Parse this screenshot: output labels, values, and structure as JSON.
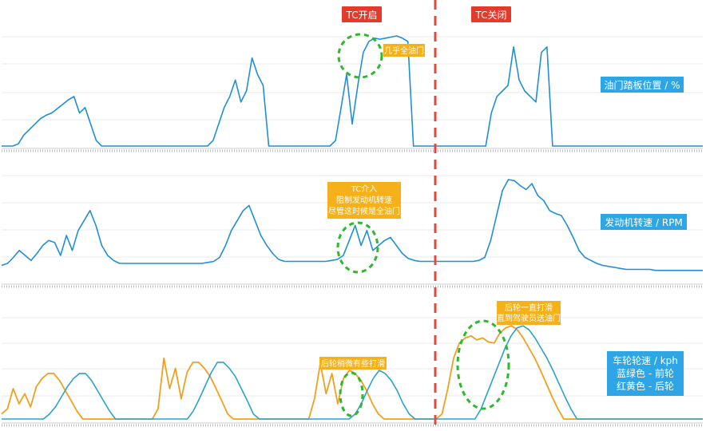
{
  "colors": {
    "engine_line": "#1f8fd6",
    "front_wheel": "#2aa3c9",
    "rear_wheel": "#f0a020",
    "rear_wheel_alt": "#e84a1a",
    "tc_marker": "#e04a3a",
    "tc_label_bg": "#e23b2b",
    "note_bg": "#f5b01a",
    "panel_label_bg": "#2ea6e6",
    "circle": "#2db82d",
    "grid": "#e6eaee"
  },
  "markers": {
    "tc_on": "TC开启",
    "tc_off": "TC关闭"
  },
  "chart_data": [
    {
      "type": "line",
      "title": "油门踏板位置 / %",
      "series": [
        {
          "name": "油门踏板位置",
          "values": [
            0,
            0,
            0,
            0.02,
            0.1,
            0.15,
            0.2,
            0.25,
            0.28,
            0.3,
            0.34,
            0.38,
            0.42,
            0.45,
            0.3,
            0.35,
            0.2,
            0.05,
            0,
            0,
            0,
            0,
            0,
            0,
            0,
            0,
            0,
            0,
            0,
            0,
            0,
            0,
            0,
            0,
            0,
            0,
            0,
            0,
            0.05,
            0.2,
            0.35,
            0.45,
            0.6,
            0.4,
            0.5,
            0.8,
            0.65,
            0.55,
            0,
            0,
            0,
            0,
            0,
            0,
            0,
            0,
            0,
            0,
            0,
            0,
            0.05,
            0.35,
            0.65,
            0.2,
            0.55,
            0.85,
            0.95,
            0.98,
            0.97,
            0.98,
            0.99,
            1.0,
            0.98,
            0.95,
            0,
            0,
            0,
            0,
            0,
            0,
            0,
            0,
            0,
            0,
            0,
            0,
            0,
            0,
            0.3,
            0.45,
            0.5,
            0.55,
            0.9,
            0.6,
            0.5,
            0.45,
            0.4,
            0.85,
            0.9,
            0,
            0,
            0,
            0,
            0,
            0,
            0,
            0,
            0,
            0,
            0,
            0,
            0,
            0,
            0,
            0,
            0,
            0,
            0,
            0,
            0,
            0,
            0,
            0,
            0,
            0,
            0,
            0
          ]
        }
      ],
      "annotations": [
        "几乎全油门"
      ]
    },
    {
      "type": "line",
      "title": "发动机转速 / RPM",
      "series": [
        {
          "name": "发动机转速",
          "values": [
            0.1,
            0.12,
            0.18,
            0.25,
            0.2,
            0.15,
            0.22,
            0.3,
            0.35,
            0.33,
            0.2,
            0.4,
            0.25,
            0.45,
            0.55,
            0.65,
            0.5,
            0.3,
            0.2,
            0.15,
            0.12,
            0.12,
            0.12,
            0.12,
            0.12,
            0.12,
            0.12,
            0.12,
            0.12,
            0.12,
            0.12,
            0.12,
            0.12,
            0.12,
            0.12,
            0.13,
            0.14,
            0.18,
            0.3,
            0.45,
            0.55,
            0.65,
            0.7,
            0.55,
            0.4,
            0.3,
            0.22,
            0.16,
            0.14,
            0.14,
            0.14,
            0.14,
            0.14,
            0.14,
            0.14,
            0.14,
            0.15,
            0.16,
            0.2,
            0.35,
            0.5,
            0.3,
            0.45,
            0.25,
            0.3,
            0.35,
            0.38,
            0.3,
            0.22,
            0.17,
            0.15,
            0.14,
            0.14,
            0.14,
            0.14,
            0.14,
            0.14,
            0.14,
            0.14,
            0.14,
            0.14,
            0.15,
            0.18,
            0.35,
            0.6,
            0.85,
            0.96,
            0.95,
            0.9,
            0.86,
            0.92,
            0.8,
            0.75,
            0.65,
            0.62,
            0.6,
            0.5,
            0.38,
            0.25,
            0.18,
            0.15,
            0.12,
            0.1,
            0.09,
            0.08,
            0.07,
            0.06,
            0.06,
            0.06,
            0.06,
            0.06,
            0.05,
            0.05,
            0.05,
            0.05,
            0.05,
            0.05,
            0.05,
            0.05,
            0.05
          ]
        }
      ],
      "annotations": [
        "TC介入",
        "阻制发动机转速",
        "尽管这时候是全油门"
      ]
    },
    {
      "type": "line",
      "title": "车轮轮速 / kph",
      "legend": [
        "蓝绿色 - 前轮",
        "红黄色 - 后轮"
      ],
      "series": [
        {
          "name": "前轮",
          "values": [
            0,
            0,
            0,
            0,
            0,
            0,
            0,
            0,
            0.05,
            0.12,
            0.22,
            0.32,
            0.4,
            0.45,
            0.45,
            0.38,
            0.28,
            0.18,
            0.08,
            0,
            0,
            0,
            0,
            0,
            0,
            0,
            0,
            0,
            0,
            0,
            0,
            0,
            0.08,
            0.2,
            0.33,
            0.46,
            0.56,
            0.56,
            0.5,
            0.42,
            0.3,
            0.18,
            0.05,
            0,
            0,
            0,
            0,
            0,
            0,
            0,
            0,
            0,
            0,
            0,
            0,
            0,
            0,
            0,
            0,
            0.05,
            0.15,
            0.28,
            0.4,
            0.48,
            0.45,
            0.38,
            0.28,
            0.15,
            0.05,
            0,
            0,
            0,
            0,
            0,
            0,
            0,
            0,
            0,
            0,
            0,
            0.1,
            0.25,
            0.4,
            0.55,
            0.7,
            0.82,
            0.9,
            0.92,
            0.88,
            0.8,
            0.7,
            0.6,
            0.48,
            0.35,
            0.22,
            0.1,
            0,
            0,
            0,
            0,
            0,
            0,
            0,
            0,
            0,
            0,
            0,
            0,
            0,
            0,
            0,
            0,
            0,
            0,
            0,
            0,
            0,
            0
          ]
        },
        {
          "name": "后轮",
          "values": [
            0.05,
            0.1,
            0.3,
            0.15,
            0.25,
            0.12,
            0.32,
            0.4,
            0.45,
            0.45,
            0.38,
            0.28,
            0.18,
            0.08,
            0,
            0,
            0,
            0,
            0,
            0,
            0,
            0,
            0,
            0,
            0,
            0,
            0,
            0.1,
            0.6,
            0.3,
            0.5,
            0.2,
            0.46,
            0.56,
            0.56,
            0.5,
            0.42,
            0.3,
            0.18,
            0.05,
            0,
            0,
            0,
            0,
            0,
            0,
            0,
            0,
            0,
            0,
            0,
            0,
            0,
            0,
            0.2,
            0.55,
            0.25,
            0.45,
            0.15,
            0.4,
            0.48,
            0.45,
            0.38,
            0.28,
            0.15,
            0.05,
            0,
            0,
            0,
            0,
            0,
            0,
            0,
            0,
            0,
            0,
            0.05,
            0.3,
            0.6,
            0.75,
            0.8,
            0.82,
            0.78,
            0.8,
            0.76,
            0.75,
            0.85,
            0.9,
            0.92,
            0.88,
            0.8,
            0.7,
            0.6,
            0.48,
            0.35,
            0.22,
            0.1,
            0,
            0,
            0,
            0,
            0,
            0,
            0,
            0,
            0,
            0,
            0,
            0,
            0,
            0,
            0,
            0,
            0,
            0,
            0,
            0,
            0,
            0,
            0,
            0,
            0
          ]
        }
      ],
      "annotations": [
        "后轮稍微有些打滑",
        "后轮一直打滑",
        "直到驾驶员送油门"
      ]
    }
  ]
}
